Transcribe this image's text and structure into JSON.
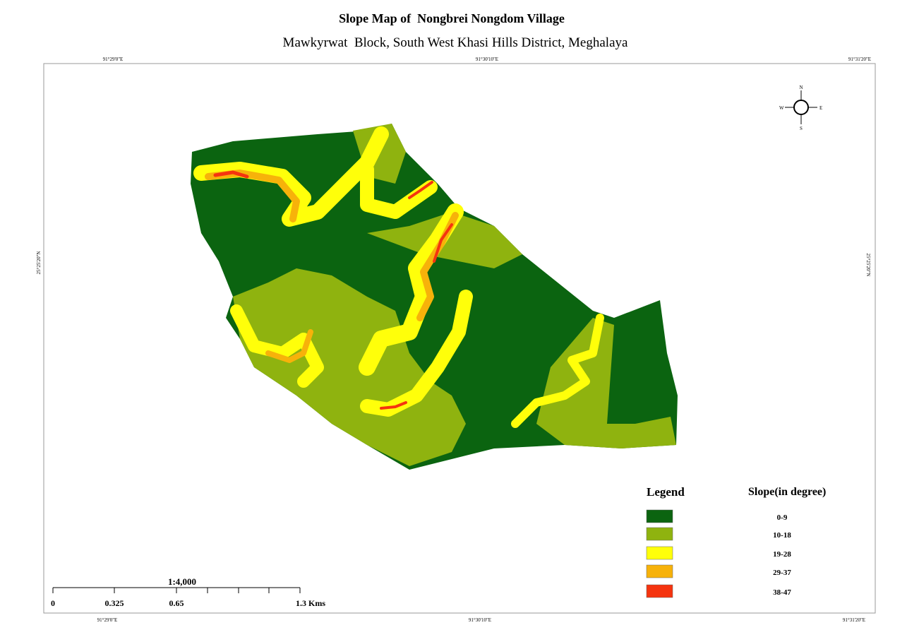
{
  "header": {
    "title": "Slope Map of  Nongbrei Nongdom Village",
    "subtitle": "Mawkyrwat  Block, South West Khasi Hills District, Meghalaya"
  },
  "graticule": {
    "top": [
      "91°29'0\"E",
      "91°30'10\"E",
      "91°31'20\"E"
    ],
    "bottom": [
      "91°29'0\"E",
      "91°30'10\"E",
      "91°31'20\"E"
    ],
    "left": "25°25'20\"N",
    "right": "25°25'20\"N"
  },
  "compass": {
    "n": "N",
    "e": "E",
    "s": "S",
    "w": "W"
  },
  "legend": {
    "title": "Legend",
    "heading": "Slope(in degree)",
    "classes": [
      {
        "label": "0-9",
        "color": "#0b6410"
      },
      {
        "label": "10-18",
        "color": "#8fb30f"
      },
      {
        "label": "19-28",
        "color": "#ffff0a"
      },
      {
        "label": "29-37",
        "color": "#f7b20a"
      },
      {
        "label": "38-47",
        "color": "#f5340f"
      }
    ]
  },
  "scale_bar": {
    "ratio": "1:4,000",
    "labels": [
      "0",
      "0.325",
      "0.65",
      "1.3 Kms"
    ]
  }
}
